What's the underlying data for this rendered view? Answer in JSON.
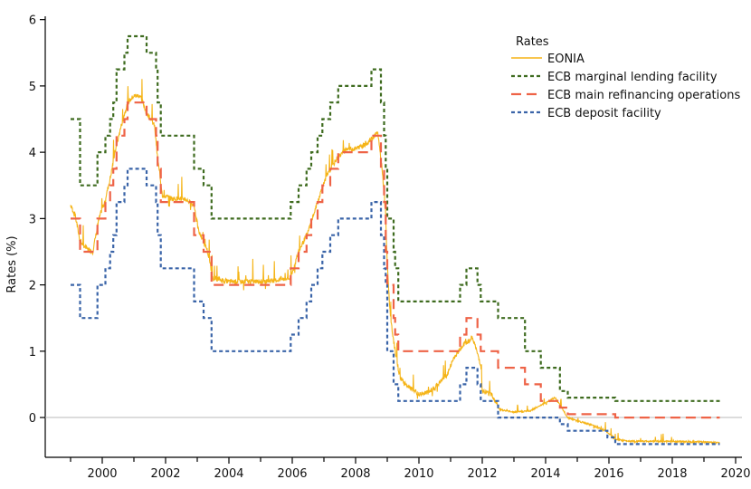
{
  "chart_data": {
    "type": "line",
    "title": "",
    "xlabel": "",
    "ylabel": "Rates (%)",
    "xlim": [
      1998.2,
      2020.2
    ],
    "ylim": [
      -0.6,
      6.05
    ],
    "x_ticks_major": [
      2000,
      2002,
      2004,
      2006,
      2008,
      2010,
      2012,
      2014,
      2016,
      2018,
      2020
    ],
    "y_ticks": [
      0,
      1,
      2,
      3,
      4,
      5,
      6
    ],
    "zero_line": true,
    "grid": false,
    "legend": {
      "title": "Rates",
      "position": "top-right",
      "entries": [
        "EONIA",
        "ECB marginal lending facility",
        "ECB main refinancing operations",
        "ECB deposit facility"
      ]
    },
    "series": [
      {
        "name": "ECB marginal lending facility",
        "color": "#3e6b1f",
        "style": "dotted",
        "steps": [
          [
            1999.0,
            4.5
          ],
          [
            1999.3,
            3.5
          ],
          [
            1999.85,
            4.0
          ],
          [
            2000.1,
            4.25
          ],
          [
            2000.25,
            4.5
          ],
          [
            2000.35,
            4.75
          ],
          [
            2000.45,
            5.25
          ],
          [
            2000.7,
            5.5
          ],
          [
            2000.8,
            5.75
          ],
          [
            2001.4,
            5.5
          ],
          [
            2001.7,
            5.25
          ],
          [
            2001.75,
            4.75
          ],
          [
            2001.85,
            4.25
          ],
          [
            2002.9,
            3.75
          ],
          [
            2003.2,
            3.5
          ],
          [
            2003.45,
            3.0
          ],
          [
            2005.95,
            3.25
          ],
          [
            2006.2,
            3.5
          ],
          [
            2006.45,
            3.75
          ],
          [
            2006.6,
            4.0
          ],
          [
            2006.8,
            4.25
          ],
          [
            2006.95,
            4.5
          ],
          [
            2007.2,
            4.75
          ],
          [
            2007.45,
            5.0
          ],
          [
            2008.5,
            5.25
          ],
          [
            2008.8,
            4.75
          ],
          [
            2008.9,
            4.25
          ],
          [
            2008.95,
            3.75
          ],
          [
            2009.0,
            3.0
          ],
          [
            2009.2,
            2.5
          ],
          [
            2009.25,
            2.25
          ],
          [
            2009.35,
            1.75
          ],
          [
            2011.3,
            2.0
          ],
          [
            2011.5,
            2.25
          ],
          [
            2011.85,
            2.0
          ],
          [
            2011.95,
            1.75
          ],
          [
            2012.5,
            1.5
          ],
          [
            2013.35,
            1.0
          ],
          [
            2013.85,
            0.75
          ],
          [
            2014.45,
            0.4
          ],
          [
            2014.7,
            0.3
          ],
          [
            2015.95,
            0.3
          ],
          [
            2016.2,
            0.25
          ],
          [
            2019.5,
            0.25
          ]
        ]
      },
      {
        "name": "ECB main refinancing operations",
        "color": "#ee6347",
        "style": "dashed",
        "steps": [
          [
            1999.0,
            3.0
          ],
          [
            1999.3,
            2.5
          ],
          [
            1999.85,
            3.0
          ],
          [
            2000.1,
            3.25
          ],
          [
            2000.25,
            3.5
          ],
          [
            2000.35,
            3.75
          ],
          [
            2000.45,
            4.25
          ],
          [
            2000.7,
            4.5
          ],
          [
            2000.8,
            4.75
          ],
          [
            2001.4,
            4.5
          ],
          [
            2001.7,
            4.25
          ],
          [
            2001.75,
            3.75
          ],
          [
            2001.85,
            3.25
          ],
          [
            2002.9,
            2.75
          ],
          [
            2003.2,
            2.5
          ],
          [
            2003.45,
            2.0
          ],
          [
            2005.95,
            2.25
          ],
          [
            2006.2,
            2.5
          ],
          [
            2006.45,
            2.75
          ],
          [
            2006.6,
            3.0
          ],
          [
            2006.8,
            3.25
          ],
          [
            2006.95,
            3.5
          ],
          [
            2007.2,
            3.75
          ],
          [
            2007.45,
            4.0
          ],
          [
            2008.5,
            4.25
          ],
          [
            2008.8,
            3.75
          ],
          [
            2008.9,
            3.25
          ],
          [
            2008.95,
            2.5
          ],
          [
            2009.0,
            2.0
          ],
          [
            2009.2,
            1.5
          ],
          [
            2009.25,
            1.25
          ],
          [
            2009.35,
            1.0
          ],
          [
            2011.3,
            1.25
          ],
          [
            2011.5,
            1.5
          ],
          [
            2011.85,
            1.25
          ],
          [
            2011.95,
            1.0
          ],
          [
            2012.5,
            0.75
          ],
          [
            2013.35,
            0.5
          ],
          [
            2013.85,
            0.25
          ],
          [
            2014.45,
            0.15
          ],
          [
            2014.7,
            0.05
          ],
          [
            2016.2,
            0.0
          ],
          [
            2019.5,
            0.0
          ]
        ]
      },
      {
        "name": "ECB deposit facility",
        "color": "#3a64a8",
        "style": "dotted",
        "steps": [
          [
            1999.0,
            2.0
          ],
          [
            1999.3,
            1.5
          ],
          [
            1999.85,
            2.0
          ],
          [
            2000.1,
            2.25
          ],
          [
            2000.25,
            2.5
          ],
          [
            2000.35,
            2.75
          ],
          [
            2000.45,
            3.25
          ],
          [
            2000.7,
            3.5
          ],
          [
            2000.8,
            3.75
          ],
          [
            2001.4,
            3.5
          ],
          [
            2001.7,
            3.25
          ],
          [
            2001.75,
            2.75
          ],
          [
            2001.85,
            2.25
          ],
          [
            2002.9,
            1.75
          ],
          [
            2003.2,
            1.5
          ],
          [
            2003.45,
            1.0
          ],
          [
            2005.95,
            1.25
          ],
          [
            2006.2,
            1.5
          ],
          [
            2006.45,
            1.75
          ],
          [
            2006.6,
            2.0
          ],
          [
            2006.8,
            2.25
          ],
          [
            2006.95,
            2.5
          ],
          [
            2007.2,
            2.75
          ],
          [
            2007.45,
            3.0
          ],
          [
            2008.5,
            3.25
          ],
          [
            2008.8,
            2.75
          ],
          [
            2008.9,
            2.25
          ],
          [
            2008.95,
            2.0
          ],
          [
            2009.0,
            1.0
          ],
          [
            2009.2,
            0.5
          ],
          [
            2009.35,
            0.25
          ],
          [
            2011.3,
            0.5
          ],
          [
            2011.5,
            0.75
          ],
          [
            2011.85,
            0.5
          ],
          [
            2011.95,
            0.25
          ],
          [
            2012.5,
            0.0
          ],
          [
            2014.45,
            -0.1
          ],
          [
            2014.7,
            -0.2
          ],
          [
            2015.95,
            -0.3
          ],
          [
            2016.2,
            -0.4
          ],
          [
            2019.5,
            -0.4
          ]
        ]
      },
      {
        "name": "EONIA",
        "color": "#f5b417",
        "style": "solid",
        "noise": 0.12,
        "points": [
          [
            1999.0,
            3.2
          ],
          [
            1999.15,
            3.05
          ],
          [
            1999.3,
            2.65
          ],
          [
            1999.5,
            2.55
          ],
          [
            1999.7,
            2.5
          ],
          [
            1999.9,
            3.0
          ],
          [
            2000.1,
            3.3
          ],
          [
            2000.25,
            3.6
          ],
          [
            2000.4,
            4.0
          ],
          [
            2000.6,
            4.4
          ],
          [
            2000.8,
            4.75
          ],
          [
            2001.0,
            4.85
          ],
          [
            2001.2,
            4.85
          ],
          [
            2001.4,
            4.6
          ],
          [
            2001.65,
            4.4
          ],
          [
            2001.75,
            3.9
          ],
          [
            2001.9,
            3.35
          ],
          [
            2002.2,
            3.3
          ],
          [
            2002.6,
            3.3
          ],
          [
            2002.9,
            3.2
          ],
          [
            2003.05,
            2.8
          ],
          [
            2003.3,
            2.55
          ],
          [
            2003.5,
            2.1
          ],
          [
            2004.0,
            2.05
          ],
          [
            2004.5,
            2.05
          ],
          [
            2005.0,
            2.05
          ],
          [
            2005.5,
            2.07
          ],
          [
            2005.95,
            2.1
          ],
          [
            2006.2,
            2.5
          ],
          [
            2006.5,
            2.8
          ],
          [
            2006.7,
            3.1
          ],
          [
            2006.9,
            3.4
          ],
          [
            2007.1,
            3.65
          ],
          [
            2007.4,
            3.9
          ],
          [
            2007.7,
            4.05
          ],
          [
            2008.0,
            4.05
          ],
          [
            2008.4,
            4.15
          ],
          [
            2008.7,
            4.3
          ],
          [
            2008.85,
            3.7
          ],
          [
            2008.95,
            3.0
          ],
          [
            2009.0,
            2.3
          ],
          [
            2009.1,
            1.5
          ],
          [
            2009.25,
            1.0
          ],
          [
            2009.4,
            0.6
          ],
          [
            2009.7,
            0.45
          ],
          [
            2010.0,
            0.35
          ],
          [
            2010.3,
            0.38
          ],
          [
            2010.6,
            0.5
          ],
          [
            2010.9,
            0.65
          ],
          [
            2011.1,
            0.9
          ],
          [
            2011.4,
            1.1
          ],
          [
            2011.7,
            1.2
          ],
          [
            2011.95,
            0.8
          ],
          [
            2012.0,
            0.4
          ],
          [
            2012.3,
            0.35
          ],
          [
            2012.55,
            0.12
          ],
          [
            2013.0,
            0.08
          ],
          [
            2013.5,
            0.1
          ],
          [
            2013.9,
            0.2
          ],
          [
            2014.3,
            0.3
          ],
          [
            2014.5,
            0.15
          ],
          [
            2014.7,
            0.0
          ],
          [
            2015.0,
            -0.05
          ],
          [
            2015.5,
            -0.12
          ],
          [
            2015.9,
            -0.2
          ],
          [
            2016.2,
            -0.33
          ],
          [
            2016.5,
            -0.35
          ],
          [
            2017.0,
            -0.36
          ],
          [
            2018.0,
            -0.36
          ],
          [
            2019.0,
            -0.37
          ],
          [
            2019.5,
            -0.38
          ]
        ]
      }
    ]
  }
}
